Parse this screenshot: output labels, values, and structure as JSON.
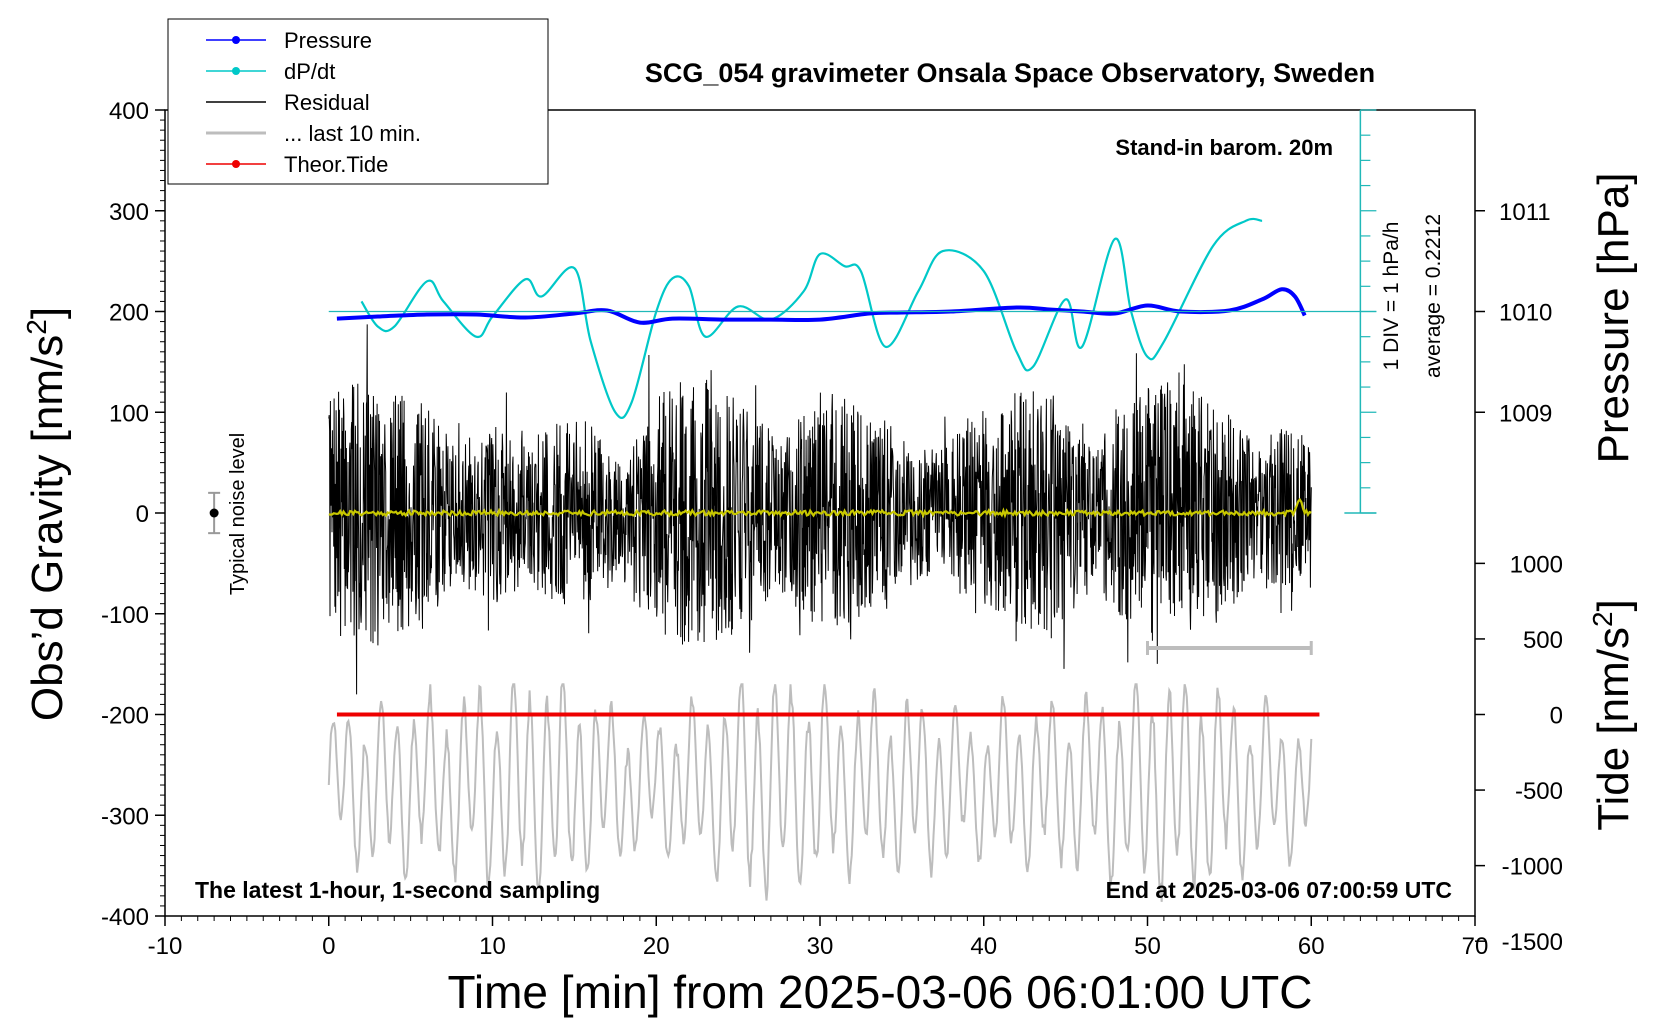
{
  "chart_data": {
    "type": "line",
    "title": "SCG_054 gravimeter Onsala Space Observatory, Sweden",
    "xlabel": "Time [min] from 2025-03-06 06:01:00 UTC",
    "ylabel_left": "Obs’d Gravity [nm/s",
    "ylabel_left_sup": "2",
    "ylabel_left_close": "]",
    "ylabel_right_pressure": "Pressure [hPa]",
    "ylabel_right_tide": "Tide [nm/s",
    "ylabel_right_tide_sup": "2",
    "ylabel_right_tide_close": "]",
    "xlim": [
      -10,
      70
    ],
    "ylim": [
      -400,
      400
    ],
    "x_ticks": [
      "-10",
      "0",
      "10",
      "20",
      "30",
      "40",
      "50",
      "60",
      "70"
    ],
    "y_ticks": [
      "400",
      "300",
      "200",
      "100",
      "0",
      "-100",
      "-200",
      "-300",
      "-400"
    ],
    "pressure_ticks": [
      "1011",
      "1010",
      "1009"
    ],
    "tide_ticks": [
      "1000",
      "500",
      "0",
      "-500",
      "-1000",
      "-1500"
    ],
    "legend": [
      {
        "label": "Pressure",
        "color": "#0000ff",
        "marker": true
      },
      {
        "label": "dP/dt",
        "color": "#00c8c8",
        "marker": true
      },
      {
        "label": "Residual",
        "color": "#000000",
        "marker": false
      },
      {
        "label": "... last 10 min.",
        "color": "#bdbdbd",
        "marker": false
      },
      {
        "label": "Theor.Tide",
        "color": "#ee0000",
        "marker": true
      }
    ],
    "annotations": {
      "barometer": "Stand-in barom. 20m",
      "scale": "1 DIV = 1 hPa/h",
      "average": "average = 0.2212",
      "noise": "Typical noise level",
      "bottom_left": "The latest 1-hour, 1-second sampling",
      "bottom_right": "End at 2025-03-06 07:00:59 UTC"
    },
    "series": [
      {
        "name": "Pressure",
        "color": "#0000ff",
        "axis": "pressure_hPa",
        "x": [
          0.5,
          3,
          6,
          9,
          12,
          15,
          17,
          19,
          21,
          24,
          27,
          30,
          33,
          35,
          38,
          42,
          44,
          46,
          48,
          50,
          52,
          55,
          57,
          58.2,
          59,
          59.6
        ],
        "y": [
          1009.93,
          1009.95,
          1009.97,
          1009.97,
          1009.94,
          1009.98,
          1010.01,
          1009.89,
          1009.93,
          1009.92,
          1009.92,
          1009.92,
          1009.98,
          1009.99,
          1010.0,
          1010.04,
          1010.02,
          1010.0,
          1009.98,
          1010.06,
          1010.0,
          1010.01,
          1010.12,
          1010.22,
          1010.15,
          1009.96
        ]
      },
      {
        "name": "dP/dt",
        "color": "#00c8c8",
        "axis": "gravity_nm_s2",
        "x": [
          2,
          3,
          4,
          6,
          7,
          9,
          10,
          12,
          13,
          15,
          16,
          17.5,
          18.5,
          20,
          21,
          22,
          23,
          25,
          27,
          29,
          30,
          31.5,
          32.5,
          34,
          36,
          37.5,
          40,
          42,
          43,
          45,
          46,
          48,
          49,
          50,
          51,
          54,
          56,
          57
        ],
        "y": [
          210,
          185,
          185,
          230,
          210,
          175,
          195,
          232,
          215,
          243,
          170,
          100,
          110,
          200,
          233,
          225,
          175,
          205,
          192,
          220,
          257,
          245,
          240,
          165,
          220,
          260,
          240,
          160,
          145,
          212,
          165,
          272,
          200,
          155,
          170,
          265,
          290,
          290
        ]
      },
      {
        "name": "Residual",
        "color": "#000000",
        "x_range": [
          0,
          60
        ],
        "y_envelope": [
          -180,
          190
        ],
        "noise_seed": 7
      },
      {
        "name": "... last 10 min.",
        "color": "#bdbdbd",
        "x_range": [
          0,
          60
        ],
        "y_center": -270,
        "y_envelope": [
          -380,
          -180
        ],
        "noise_seed": 13,
        "span_marker_x": [
          50,
          60
        ],
        "span_marker_y": -134
      },
      {
        "name": "Theor.Tide",
        "color": "#ee0000",
        "axis": "tide_nm_s2",
        "x": [
          0.5,
          60.5
        ],
        "y": [
          0,
          0
        ]
      },
      {
        "name": "Residual smoothed",
        "color": "#c8c800",
        "x_range": [
          0,
          60
        ],
        "y_value": 0,
        "end_bump_at": 59.3,
        "end_bump_value": 12
      }
    ],
    "noise_bar": {
      "x": -7,
      "y": 0,
      "half_range": 20
    },
    "pressure_axis": {
      "ticks": [
        1009,
        1010,
        1011
      ],
      "zero_at_gravity": 200,
      "gravity_per_hPa": 100
    },
    "tide_axis": {
      "ticks": [
        1000,
        500,
        0,
        -500,
        -1000,
        -1500
      ],
      "zero_at_gravity": -200,
      "nm_per_gravity_unit": 6.666667
    },
    "dpdt_scale_ticks": {
      "x": 63,
      "y_top": 400,
      "y_bottom": 0,
      "step": 25,
      "zero_line_y": 200
    }
  }
}
